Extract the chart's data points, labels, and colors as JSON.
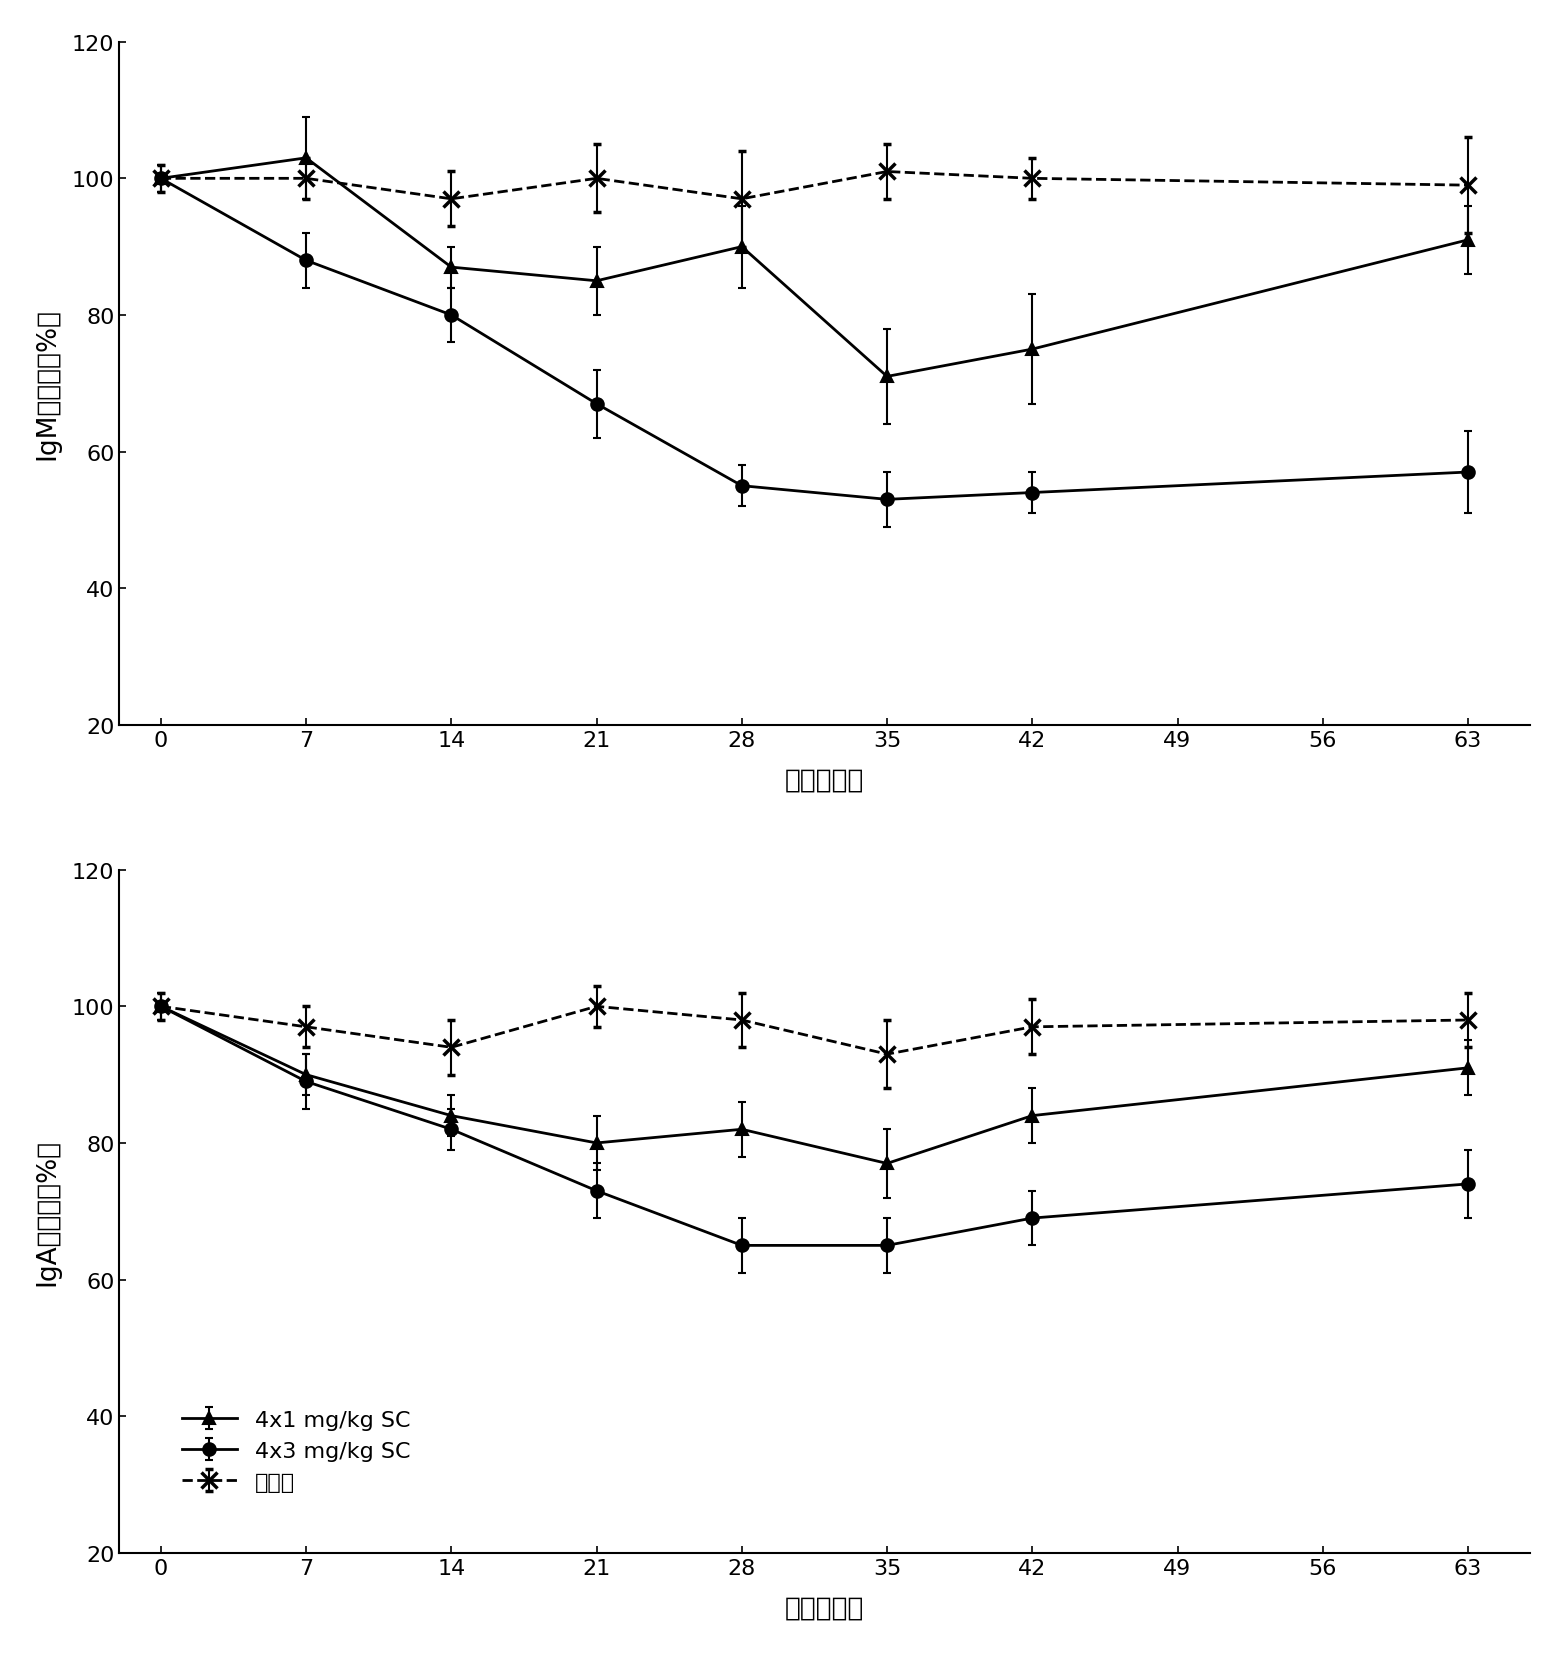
{
  "x_ticks": [
    0,
    7,
    14,
    21,
    28,
    35,
    42,
    49,
    56,
    63
  ],
  "x_data": [
    0,
    7,
    14,
    21,
    28,
    35,
    42,
    63
  ],
  "igm_4x1": [
    100,
    103,
    87,
    85,
    90,
    71,
    75,
    91
  ],
  "igm_4x1_err": [
    2,
    6,
    3,
    5,
    6,
    7,
    8,
    5
  ],
  "igm_4x3": [
    100,
    88,
    80,
    67,
    55,
    53,
    54,
    57
  ],
  "igm_4x3_err": [
    2,
    4,
    4,
    5,
    3,
    4,
    3,
    6
  ],
  "igm_placebo": [
    100,
    100,
    97,
    100,
    97,
    101,
    100,
    99
  ],
  "igm_placebo_err": [
    2,
    3,
    4,
    5,
    7,
    4,
    3,
    7
  ],
  "iga_4x1": [
    100,
    90,
    84,
    80,
    82,
    77,
    84,
    91
  ],
  "iga_4x1_err": [
    2,
    3,
    3,
    4,
    4,
    5,
    4,
    4
  ],
  "iga_4x3": [
    100,
    89,
    82,
    73,
    65,
    65,
    69,
    74
  ],
  "iga_4x3_err": [
    2,
    4,
    3,
    4,
    4,
    4,
    4,
    5
  ],
  "iga_placebo": [
    100,
    97,
    94,
    100,
    98,
    93,
    97,
    98
  ],
  "iga_placebo_err": [
    2,
    3,
    4,
    3,
    4,
    5,
    4,
    4
  ],
  "ylabel_top": "IgM［基线的%］",
  "ylabel_bottom": "IgA［基线的%］",
  "xlabel": "时间［天］",
  "legend_4x1": "4x1 mg/kg SC",
  "legend_4x3": "4x3 mg/kg SC",
  "legend_placebo": "安慰剂",
  "ylim": [
    20,
    120
  ],
  "yticks": [
    20,
    40,
    60,
    80,
    100,
    120
  ]
}
